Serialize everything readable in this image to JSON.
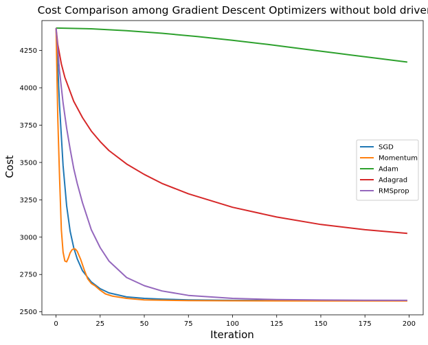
{
  "chart_data": {
    "type": "line",
    "title": "Cost Comparison among Gradient Descent Optimizers without bold driver",
    "xlabel": "Iteration",
    "ylabel": "Cost",
    "xlim": [
      -8,
      208
    ],
    "ylim": [
      2480,
      4450
    ],
    "xticks": [
      0,
      25,
      50,
      75,
      100,
      125,
      150,
      175,
      200
    ],
    "yticks": [
      2500,
      2750,
      3000,
      3250,
      3500,
      3750,
      4000,
      4250
    ],
    "grid": false,
    "legend_position": "center-right",
    "series": [
      {
        "name": "SGD",
        "color": "#1f77b4",
        "points": [
          [
            0,
            4400
          ],
          [
            2,
            3880
          ],
          [
            4,
            3480
          ],
          [
            6,
            3210
          ],
          [
            8,
            3040
          ],
          [
            10,
            2930
          ],
          [
            12,
            2855
          ],
          [
            15,
            2775
          ],
          [
            20,
            2700
          ],
          [
            25,
            2655
          ],
          [
            30,
            2627
          ],
          [
            40,
            2600
          ],
          [
            50,
            2590
          ],
          [
            60,
            2585
          ],
          [
            75,
            2580
          ],
          [
            100,
            2577
          ],
          [
            125,
            2576
          ],
          [
            150,
            2575
          ],
          [
            175,
            2575
          ],
          [
            199,
            2575
          ]
        ]
      },
      {
        "name": "Momentum",
        "color": "#ff7f0e",
        "points": [
          [
            0,
            4400
          ],
          [
            1,
            3800
          ],
          [
            2,
            3400
          ],
          [
            3,
            3050
          ],
          [
            4,
            2900
          ],
          [
            5,
            2840
          ],
          [
            6,
            2835
          ],
          [
            7,
            2860
          ],
          [
            8,
            2895
          ],
          [
            9,
            2915
          ],
          [
            10,
            2922
          ],
          [
            11,
            2920
          ],
          [
            12,
            2905
          ],
          [
            14,
            2850
          ],
          [
            16,
            2780
          ],
          [
            18,
            2720
          ],
          [
            20,
            2690
          ],
          [
            22,
            2675
          ],
          [
            25,
            2645
          ],
          [
            28,
            2620
          ],
          [
            32,
            2605
          ],
          [
            40,
            2590
          ],
          [
            50,
            2580
          ],
          [
            75,
            2575
          ],
          [
            100,
            2574
          ],
          [
            150,
            2573
          ],
          [
            199,
            2573
          ]
        ]
      },
      {
        "name": "Adam",
        "color": "#2ca02c",
        "points": [
          [
            0,
            4400
          ],
          [
            20,
            4395
          ],
          [
            40,
            4382
          ],
          [
            60,
            4365
          ],
          [
            80,
            4343
          ],
          [
            100,
            4318
          ],
          [
            120,
            4290
          ],
          [
            140,
            4260
          ],
          [
            160,
            4230
          ],
          [
            180,
            4200
          ],
          [
            199,
            4172
          ]
        ]
      },
      {
        "name": "Adagrad",
        "color": "#d62728",
        "points": [
          [
            0,
            4400
          ],
          [
            1,
            4290
          ],
          [
            3,
            4160
          ],
          [
            5,
            4070
          ],
          [
            10,
            3910
          ],
          [
            15,
            3800
          ],
          [
            20,
            3710
          ],
          [
            25,
            3640
          ],
          [
            30,
            3580
          ],
          [
            40,
            3490
          ],
          [
            50,
            3420
          ],
          [
            60,
            3360
          ],
          [
            75,
            3290
          ],
          [
            100,
            3200
          ],
          [
            125,
            3135
          ],
          [
            150,
            3085
          ],
          [
            175,
            3050
          ],
          [
            199,
            3025
          ]
        ]
      },
      {
        "name": "RMSprop",
        "color": "#9467bd",
        "points": [
          [
            0,
            4400
          ],
          [
            2,
            4110
          ],
          [
            4,
            3900
          ],
          [
            6,
            3730
          ],
          [
            8,
            3590
          ],
          [
            10,
            3460
          ],
          [
            12,
            3360
          ],
          [
            15,
            3230
          ],
          [
            20,
            3050
          ],
          [
            25,
            2930
          ],
          [
            30,
            2840
          ],
          [
            40,
            2730
          ],
          [
            50,
            2675
          ],
          [
            60,
            2640
          ],
          [
            75,
            2610
          ],
          [
            100,
            2590
          ],
          [
            125,
            2582
          ],
          [
            150,
            2579
          ],
          [
            175,
            2578
          ],
          [
            199,
            2577
          ]
        ]
      }
    ]
  }
}
